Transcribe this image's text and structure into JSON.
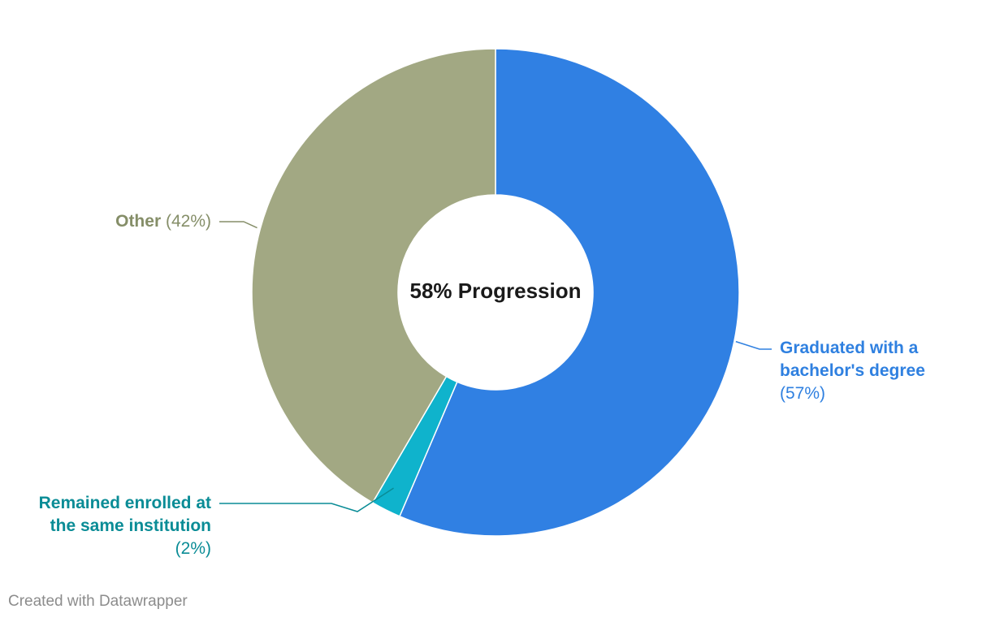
{
  "chart_data": {
    "type": "pie",
    "variant": "donut",
    "center_label": "58% Progression",
    "slices": [
      {
        "name": "Graduated with a bachelor's degree",
        "name_line1": "Graduated with a",
        "name_line2": "bachelor's degree",
        "value": 57,
        "value_label": "(57%)",
        "color": "#3080e3"
      },
      {
        "name": "Remained enrolled at the same institution",
        "name_line1": "Remained enrolled at",
        "name_line2": "the same institution",
        "value": 2,
        "value_label": "(2%)",
        "color": "#0fb3cc"
      },
      {
        "name": "Other",
        "value": 42,
        "value_label": "(42%)",
        "color": "#a2a883"
      }
    ]
  },
  "footer": "Created with Datawrapper",
  "colors": {
    "graduated_label": "#2f80e0",
    "remained_label": "#0a8c96",
    "other_label": "#858e68"
  }
}
